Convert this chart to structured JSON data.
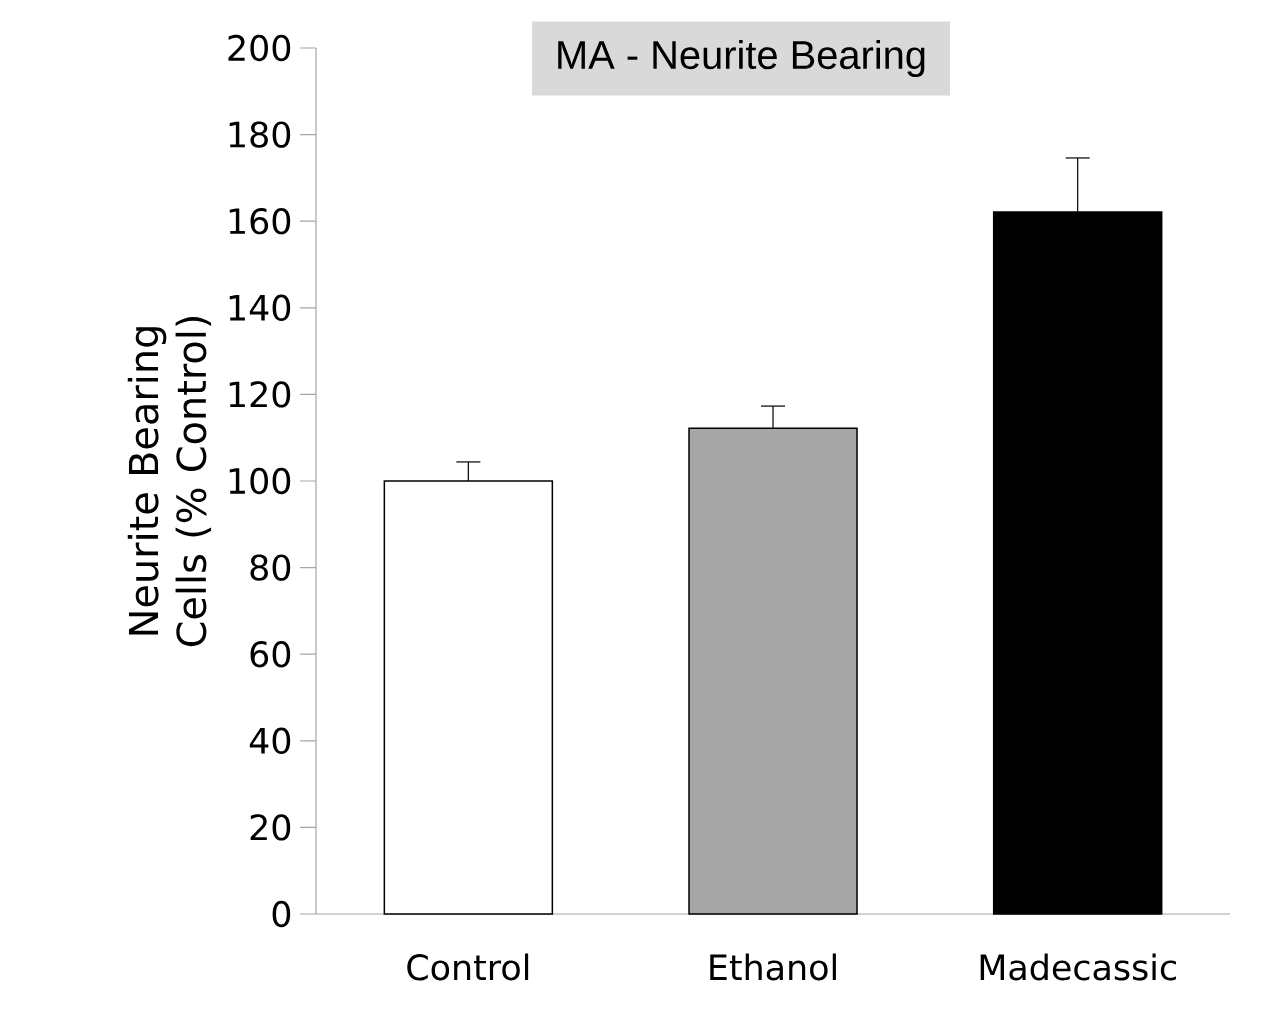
{
  "chart_data": {
    "type": "bar",
    "title": "MA - Neurite Bearing",
    "ylabel": "Neurite Bearing Cells (% Control)",
    "categories": [
      "Control",
      "Ethanol",
      "Madecassic"
    ],
    "values": [
      100,
      112.2,
      162.1
    ],
    "errors": [
      [
        100,
        104.4
      ],
      [
        112.2,
        117.3
      ],
      [
        162.1,
        174.6
      ]
    ],
    "colors": [
      "#ffffff",
      "#a6a6a6",
      "#000000"
    ],
    "ylim": [
      0,
      200
    ],
    "yticks": [
      0,
      20,
      40,
      60,
      80,
      100,
      120,
      140,
      160,
      180,
      200
    ],
    "grid": false
  }
}
